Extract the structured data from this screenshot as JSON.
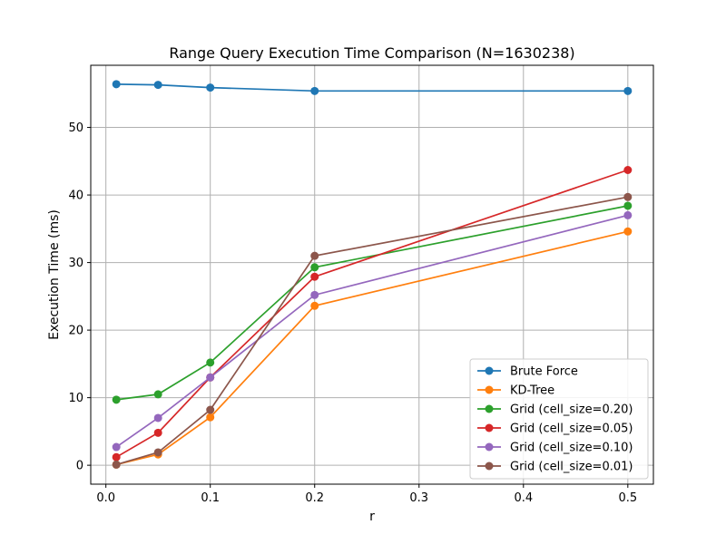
{
  "chart_data": {
    "type": "line",
    "title": "Range Query Execution Time Comparison (N=1630238)",
    "xlabel": "r",
    "ylabel": "Execution Time (ms)",
    "xlim": [
      -0.0145,
      0.5245
    ],
    "ylim": [
      -2.8,
      59.2
    ],
    "xticks": [
      0.0,
      0.1,
      0.2,
      0.3,
      0.4,
      0.5
    ],
    "xtick_labels": [
      "0.0",
      "0.1",
      "0.2",
      "0.3",
      "0.4",
      "0.5"
    ],
    "yticks": [
      0,
      10,
      20,
      30,
      40,
      50
    ],
    "ytick_labels": [
      "0",
      "10",
      "20",
      "30",
      "40",
      "50"
    ],
    "grid": true,
    "legend_position": "bottom-right",
    "x": [
      0.01,
      0.05,
      0.1,
      0.2,
      0.5
    ],
    "series": [
      {
        "name": "Brute Force",
        "color": "#1f77b4",
        "values": [
          56.4,
          56.3,
          55.9,
          55.4,
          55.4
        ]
      },
      {
        "name": "KD-Tree",
        "color": "#ff7f0e",
        "values": [
          0.1,
          1.6,
          7.1,
          23.6,
          34.6
        ]
      },
      {
        "name": "Grid (cell_size=0.20)",
        "color": "#2ca02c",
        "values": [
          9.7,
          10.5,
          15.2,
          29.3,
          38.4
        ]
      },
      {
        "name": "Grid (cell_size=0.05)",
        "color": "#d62728",
        "values": [
          1.2,
          4.8,
          13.0,
          27.9,
          43.7
        ]
      },
      {
        "name": "Grid (cell_size=0.10)",
        "color": "#9467bd",
        "values": [
          2.7,
          7.0,
          13.0,
          25.2,
          37.0
        ]
      },
      {
        "name": "Grid (cell_size=0.01)",
        "color": "#8c564b",
        "values": [
          0.1,
          1.9,
          8.2,
          31.0,
          39.7
        ]
      }
    ]
  }
}
